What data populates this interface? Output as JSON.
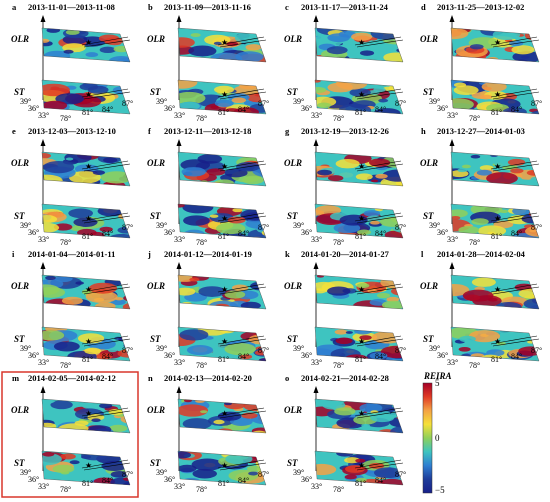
{
  "figure": {
    "colorbar": {
      "title": "REIRA",
      "ticks": [
        "5",
        "0",
        "−5"
      ],
      "colors": [
        "#a50026",
        "#e03a25",
        "#f4a245",
        "#f5e03a",
        "#8fd05a",
        "#3ec4c0",
        "#2f7fd1",
        "#1e3c9a",
        "#17208a"
      ]
    },
    "layer_labels": {
      "top": "OLR",
      "bottom": "ST"
    },
    "tick_labels": {
      "lat": [
        "39°",
        "36°",
        "33°"
      ],
      "lon": [
        "78°",
        "81°",
        "84°",
        "87°"
      ]
    },
    "highlight_color": "#d9372b",
    "highlighted_panel": "m",
    "panels": [
      {
        "letter": "a",
        "title": "2013-11-01—2013-11-08"
      },
      {
        "letter": "b",
        "title": "2013-11-09—2013-11-16"
      },
      {
        "letter": "c",
        "title": "2013-11-17—2013-11-24"
      },
      {
        "letter": "d",
        "title": "2013-11-25—2013-12-02"
      },
      {
        "letter": "e",
        "title": "2013-12-03—2013-12-10"
      },
      {
        "letter": "f",
        "title": "2013-12-11—2013-12-18"
      },
      {
        "letter": "g",
        "title": "2013-12-19—2013-12-26"
      },
      {
        "letter": "h",
        "title": "2013-12-27—2014-01-03"
      },
      {
        "letter": "i",
        "title": "2014-01-04—2014-01-11"
      },
      {
        "letter": "j",
        "title": "2014-01-12—2014-01-19"
      },
      {
        "letter": "k",
        "title": "2014-01-20—2014-01-27"
      },
      {
        "letter": "l",
        "title": "2014-01-28—2014-02-04"
      },
      {
        "letter": "m",
        "title": "2014-02-05—2014-02-12"
      },
      {
        "letter": "n",
        "title": "2014-02-13—2014-02-20"
      },
      {
        "letter": "o",
        "title": "2014-02-21—2014-02-28"
      }
    ]
  }
}
